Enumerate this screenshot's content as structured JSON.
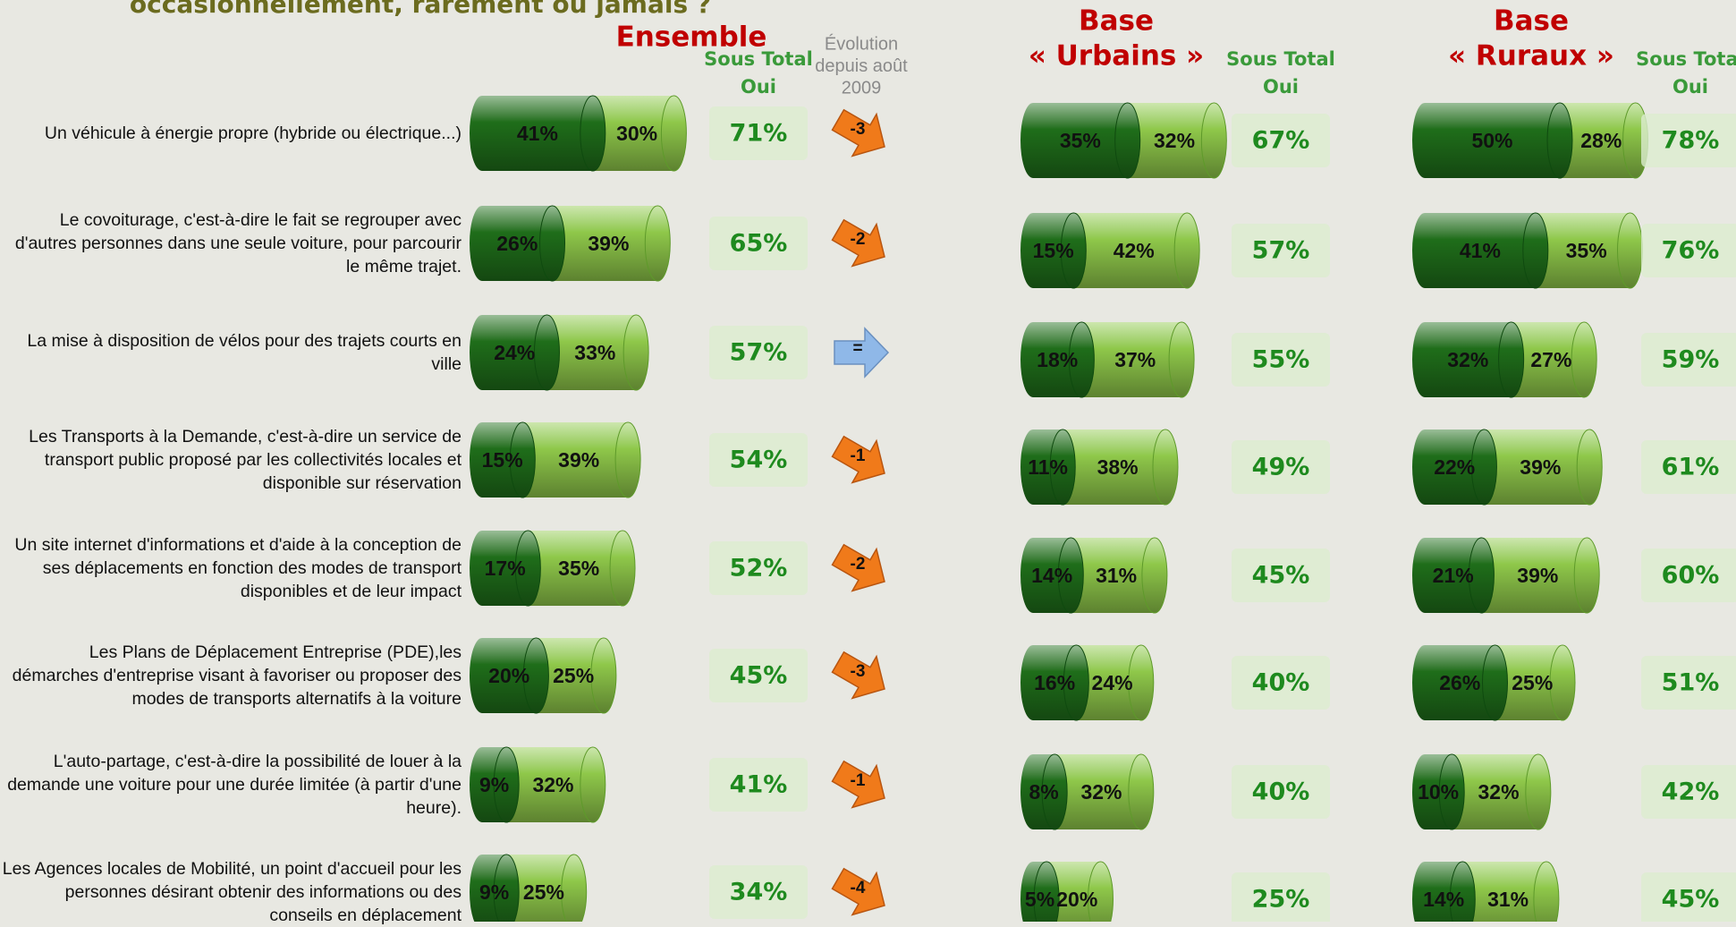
{
  "header": {
    "title": "occasionnellement, rarement ou jamais ?"
  },
  "evolution_header": [
    "Évolution",
    "depuis août",
    "2009"
  ],
  "colors": {
    "dark": "#1f6e1a",
    "light": "#8fc84a",
    "title": "#c00000",
    "subtotal": "#1e8a1e",
    "down": "#f07a1a",
    "equal": "#8fb8e8"
  },
  "items": [
    "Un véhicule à énergie propre (hybride ou électrique...)",
    "Le covoiturage, c'est-à-dire le fait se regrouper avec d'autres personnes dans une seule voiture, pour parcourir le même trajet.",
    "La mise à disposition de vélos pour des trajets courts en ville",
    "Les Transports à la Demande, c'est-à-dire un service de transport public proposé par les collectivités locales et disponible sur réservation",
    "Un site internet d'informations et d'aide à la conception de ses déplacements en fonction des modes de transport disponibles et de leur impact",
    "Les Plans de Déplacement Entreprise (PDE),les démarches d'entreprise visant à favoriser ou proposer des modes de transports alternatifs à la voiture",
    "L'auto-partage, c'est-à-dire la possibilité de louer à la demande une voiture pour une durée limitée (à partir d'une heure).",
    "Les Agences locales de Mobilité, un point d'accueil pour les personnes désirant obtenir des informations ou des conseils en déplacement"
  ],
  "evolution": {
    "values": [
      -3,
      -2,
      0,
      -1,
      -2,
      -3,
      -1,
      -4
    ],
    "value_labels": [
      "-3",
      "-2",
      "=",
      "-1",
      "-2",
      "-3",
      "-1",
      "-4"
    ]
  },
  "groups": [
    {
      "title": [
        "Ensemble"
      ],
      "subtotal_header": [
        "Sous Total",
        "Oui"
      ],
      "dark": [
        41,
        26,
        24,
        15,
        17,
        20,
        9,
        9
      ],
      "dark_labels": [
        "41%",
        "26%",
        "24%",
        "15%",
        "17%",
        "20%",
        "9%",
        "9%"
      ],
      "light": [
        30,
        39,
        33,
        39,
        35,
        25,
        32,
        25
      ],
      "light_labels": [
        "30%",
        "39%",
        "33%",
        "39%",
        "35%",
        "25%",
        "32%",
        "25%"
      ],
      "subtotal": [
        71,
        65,
        57,
        54,
        52,
        45,
        41,
        34
      ],
      "subtotal_labels": [
        "71%",
        "65%",
        "57%",
        "54%",
        "52%",
        "45%",
        "41%",
        "34%"
      ]
    },
    {
      "title": [
        "Base",
        "« Urbains »"
      ],
      "subtotal_header": [
        "Sous Total",
        "Oui"
      ],
      "dark": [
        35,
        15,
        18,
        11,
        14,
        16,
        8,
        5
      ],
      "dark_labels": [
        "35%",
        "15%",
        "18%",
        "11%",
        "14%",
        "16%",
        "8%",
        "5%"
      ],
      "light": [
        32,
        42,
        37,
        38,
        31,
        24,
        32,
        20
      ],
      "light_labels": [
        "32%",
        "42%",
        "37%",
        "38%",
        "31%",
        "24%",
        "32%",
        "20%"
      ],
      "subtotal": [
        67,
        57,
        55,
        49,
        45,
        40,
        40,
        25
      ],
      "subtotal_labels": [
        "67%",
        "57%",
        "55%",
        "49%",
        "45%",
        "40%",
        "40%",
        "25%"
      ]
    },
    {
      "title": [
        "Base",
        "« Ruraux »"
      ],
      "subtotal_header": [
        "Sous Total",
        "Oui"
      ],
      "dark": [
        50,
        41,
        32,
        22,
        21,
        26,
        10,
        14
      ],
      "dark_labels": [
        "50%",
        "41%",
        "32%",
        "22%",
        "21%",
        "26%",
        "10%",
        "14%"
      ],
      "light": [
        28,
        35,
        27,
        39,
        39,
        25,
        32,
        31
      ],
      "light_labels": [
        "28%",
        "35%",
        "27%",
        "39%",
        "39%",
        "25%",
        "32%",
        "31%"
      ],
      "subtotal": [
        78,
        76,
        59,
        61,
        60,
        51,
        42,
        45
      ],
      "subtotal_labels": [
        "78%",
        "76%",
        "59%",
        "61%",
        "60%",
        "51%",
        "42%",
        "45%"
      ]
    }
  ]
}
